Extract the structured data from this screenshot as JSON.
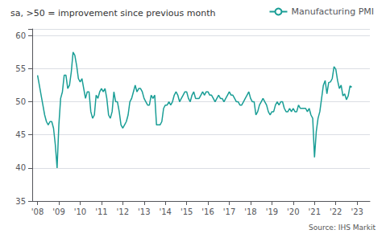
{
  "chart_data": {
    "type": "line",
    "title": "sa, >50 = improvement since previous month",
    "annotations": [
      "Source: IHS Markit"
    ],
    "x": [
      2008,
      2008.0833333333333,
      2008.1666666666667,
      2008.25,
      2008.3333333333333,
      2008.4166666666667,
      2008.5,
      2008.5833333333333,
      2008.6666666666667,
      2008.75,
      2008.8333333333333,
      2008.9166666666667,
      2009,
      2009.0833333333333,
      2009.1666666666667,
      2009.25,
      2009.3333333333333,
      2009.4166666666667,
      2009.5,
      2009.5833333333333,
      2009.6666666666667,
      2009.75,
      2009.8333333333333,
      2009.9166666666667,
      2010,
      2010.0833333333333,
      2010.1666666666667,
      2010.25,
      2010.3333333333333,
      2010.4166666666667,
      2010.5,
      2010.5833333333333,
      2010.6666666666667,
      2010.75,
      2010.8333333333333,
      2010.9166666666667,
      2011,
      2011.0833333333333,
      2011.1666666666667,
      2011.25,
      2011.3333333333333,
      2011.4166666666667,
      2011.5,
      2011.5833333333333,
      2011.6666666666667,
      2011.75,
      2011.8333333333333,
      2011.9166666666667,
      2012,
      2012.0833333333333,
      2012.1666666666667,
      2012.25,
      2012.3333333333333,
      2012.4166666666667,
      2012.5,
      2012.5833333333333,
      2012.6666666666667,
      2012.75,
      2012.8333333333333,
      2012.9166666666667,
      2013,
      2013.0833333333333,
      2013.1666666666667,
      2013.25,
      2013.3333333333333,
      2013.4166666666667,
      2013.5,
      2013.5833333333333,
      2013.6666666666667,
      2013.75,
      2013.8333333333333,
      2013.9166666666667,
      2014,
      2014.0833333333333,
      2014.1666666666667,
      2014.25,
      2014.3333333333333,
      2014.4166666666667,
      2014.5,
      2014.5833333333333,
      2014.6666666666667,
      2014.75,
      2014.8333333333333,
      2014.9166666666667,
      2015,
      2015.0833333333333,
      2015.1666666666667,
      2015.25,
      2015.3333333333333,
      2015.4166666666667,
      2015.5,
      2015.5833333333333,
      2015.6666666666667,
      2015.75,
      2015.8333333333333,
      2015.9166666666667,
      2016,
      2016.0833333333333,
      2016.1666666666667,
      2016.25,
      2016.3333333333333,
      2016.4166666666667,
      2016.5,
      2016.5833333333333,
      2016.6666666666667,
      2016.75,
      2016.8333333333333,
      2016.9166666666667,
      2017,
      2017.0833333333333,
      2017.1666666666667,
      2017.25,
      2017.3333333333333,
      2017.4166666666667,
      2017.5,
      2017.5833333333333,
      2017.6666666666667,
      2017.75,
      2017.8333333333333,
      2017.9166666666667,
      2018,
      2018.0833333333333,
      2018.1666666666667,
      2018.25,
      2018.3333333333333,
      2018.4166666666667,
      2018.5,
      2018.5833333333333,
      2018.6666666666667,
      2018.75,
      2018.8333333333333,
      2018.9166666666667,
      2019,
      2019.0833333333333,
      2019.1666666666667,
      2019.25,
      2019.3333333333333,
      2019.4166666666667,
      2019.5,
      2019.5833333333333,
      2019.6666666666667,
      2019.75,
      2019.8333333333333,
      2019.9166666666667,
      2020,
      2020.0833333333333,
      2020.1666666666667,
      2020.25,
      2020.3333333333333,
      2020.4166666666667,
      2020.5,
      2020.5833333333333,
      2020.6666666666667,
      2020.75,
      2020.8333333333333,
      2020.9166666666667,
      2021,
      2021.0833333333333,
      2021.1666666666667,
      2021.25,
      2021.3333333333333,
      2021.4166666666667,
      2021.5,
      2021.5833333333333,
      2021.6666666666667,
      2021.75,
      2021.8333333333333,
      2021.9166666666667,
      2022,
      2022.0833333333333,
      2022.1666666666667,
      2022.25,
      2022.3333333333333,
      2022.4166666666667,
      2022.5,
      2022.5833333333333,
      2022.6666666666667,
      2022.75
    ],
    "series": [
      {
        "name": "Manufacturing PMI",
        "color": "#1a9e96",
        "values": [
          54.0,
          52.5,
          51.0,
          49.5,
          48.0,
          47.0,
          46.5,
          47.0,
          47.0,
          46.0,
          43.5,
          40.0,
          46.5,
          50.5,
          51.5,
          54.0,
          54.0,
          52.0,
          52.5,
          54.5,
          57.5,
          57.0,
          55.5,
          53.5,
          53.0,
          53.5,
          52.0,
          50.5,
          51.5,
          51.5,
          48.5,
          47.5,
          48.0,
          51.0,
          50.5,
          51.5,
          52.0,
          51.5,
          52.0,
          50.5,
          48.0,
          47.5,
          48.5,
          51.5,
          50.0,
          50.0,
          48.5,
          46.5,
          46.0,
          46.5,
          47.0,
          48.0,
          50.0,
          50.5,
          51.5,
          52.5,
          51.5,
          52.0,
          52.0,
          51.5,
          50.5,
          50.0,
          49.5,
          49.5,
          51.0,
          50.5,
          51.0,
          46.5,
          46.5,
          46.5,
          47.0,
          49.0,
          49.5,
          49.5,
          50.0,
          49.5,
          50.0,
          51.0,
          51.5,
          51.0,
          50.0,
          50.5,
          51.0,
          51.5,
          51.5,
          50.5,
          50.0,
          51.0,
          51.5,
          50.5,
          50.5,
          50.5,
          51.0,
          51.5,
          51.0,
          51.5,
          51.5,
          51.0,
          51.0,
          50.5,
          50.0,
          50.5,
          51.0,
          50.5,
          50.5,
          50.0,
          50.5,
          51.0,
          51.5,
          51.0,
          51.0,
          50.5,
          50.0,
          50.0,
          49.5,
          49.5,
          50.0,
          50.5,
          51.0,
          51.5,
          50.5,
          50.0,
          50.0,
          48.0,
          48.5,
          49.5,
          50.0,
          50.5,
          50.0,
          49.5,
          48.5,
          48.0,
          48.5,
          48.5,
          49.5,
          50.0,
          49.5,
          50.0,
          50.0,
          49.0,
          48.5,
          48.5,
          49.0,
          48.5,
          49.0,
          48.5,
          48.5,
          49.5,
          49.0,
          49.0,
          49.0,
          49.0,
          48.5,
          49.0,
          48.0,
          47.5,
          41.6,
          45.5,
          47.5,
          48.5,
          50.5,
          52.5,
          53.2,
          51.2,
          52.9,
          53.0,
          53.5,
          55.3,
          54.9,
          53.2,
          52.0,
          52.5,
          50.9,
          51.2,
          50.3,
          50.9,
          52.4,
          52.2
        ]
      }
    ],
    "xlim": [
      2007.75,
      2023.6
    ],
    "xticks": [
      {
        "value": 2008,
        "label": "'08"
      },
      {
        "value": 2009,
        "label": "'09"
      },
      {
        "value": 2010,
        "label": "'10"
      },
      {
        "value": 2011,
        "label": "'11"
      },
      {
        "value": 2012,
        "label": "'12"
      },
      {
        "value": 2013,
        "label": "'13"
      },
      {
        "value": 2014,
        "label": "'14"
      },
      {
        "value": 2015,
        "label": "'15"
      },
      {
        "value": 2016,
        "label": "'16"
      },
      {
        "value": 2017,
        "label": "'17"
      },
      {
        "value": 2018,
        "label": "'18"
      },
      {
        "value": 2019,
        "label": "'19"
      },
      {
        "value": 2020,
        "label": "'20"
      },
      {
        "value": 2021,
        "label": "'21"
      },
      {
        "value": 2022,
        "label": "'22"
      },
      {
        "value": 2023,
        "label": "'23"
      }
    ],
    "ylim": [
      35,
      61
    ],
    "yticks": [
      35,
      40,
      45,
      50,
      55,
      60
    ],
    "grid": true,
    "legend": "upper right"
  }
}
